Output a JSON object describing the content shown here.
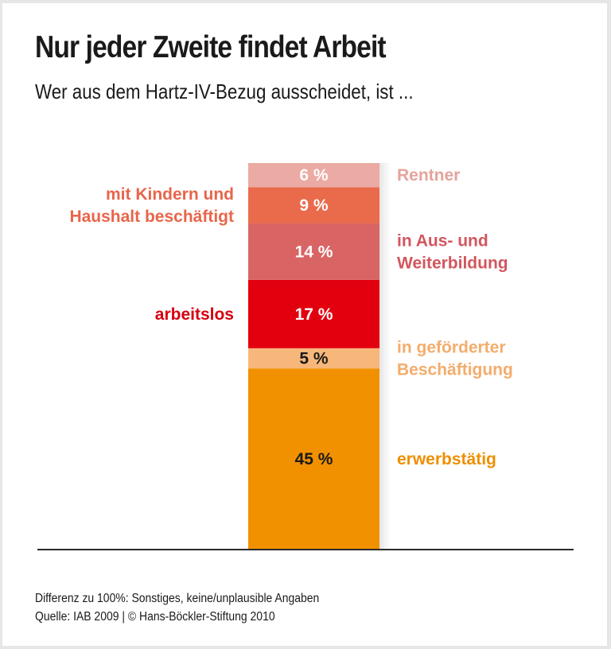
{
  "header": {
    "title": "Nur jeder Zweite findet Arbeit",
    "subtitle": "Wer aus dem Hartz-IV-Bezug ausscheidet, ist ..."
  },
  "footer": {
    "note": "Differenz zu 100%: Sonstiges, keine/unplausible Angaben",
    "source": "Quelle: IAB 2009 | © Hans-Böckler-Stiftung 2010"
  },
  "chart_data": {
    "type": "bar",
    "subtype": "stacked-single",
    "title": "Nur jeder Zweite findet Arbeit",
    "subtitle": "Wer aus dem Hartz-IV-Bezug ausscheidet, ist ...",
    "unit": "%",
    "segments_bottom_to_top": [
      {
        "name": "erwerbstätig",
        "value": 45,
        "label": "45 %",
        "color": "#f29100",
        "value_color": "#1a1a1a",
        "label_color": "#ee8f00",
        "label_side": "right",
        "label_lines": [
          "erwerbstätig"
        ]
      },
      {
        "name": "in geförderter Beschäftigung",
        "value": 5,
        "label": "5 %",
        "color": "#f7b77a",
        "value_color": "#1a1a1a",
        "label_color": "#f4ac6c",
        "label_side": "right",
        "label_lines": [
          "in geförderter",
          "Beschäftigung"
        ]
      },
      {
        "name": "arbeitslos",
        "value": 17,
        "label": "17 %",
        "color": "#e2000f",
        "value_color": "#ffffff",
        "label_color": "#d7000f",
        "label_side": "left",
        "label_lines": [
          "arbeitslos"
        ]
      },
      {
        "name": "in Aus- und Weiterbildung",
        "value": 14,
        "label": "14 %",
        "color": "#d96464",
        "value_color": "#ffffff",
        "label_color": "#d2565e",
        "label_side": "right",
        "label_lines": [
          "in Aus- und",
          "Weiterbildung"
        ]
      },
      {
        "name": "mit Kindern und Haushalt beschäftigt",
        "value": 9,
        "label": "9 %",
        "color": "#ea6a4c",
        "value_color": "#ffffff",
        "label_color": "#e8654a",
        "label_side": "left",
        "label_lines": [
          "mit Kindern und",
          "Haushalt beschäftigt"
        ]
      },
      {
        "name": "Rentner",
        "value": 6,
        "label": "6 %",
        "color": "#ebaaa3",
        "value_color": "#ffffff",
        "label_color": "#e4a39c",
        "label_side": "right",
        "label_lines": [
          "Rentner"
        ]
      }
    ],
    "total_shown": 96,
    "grid": false,
    "legend": "none (direct labels)"
  }
}
